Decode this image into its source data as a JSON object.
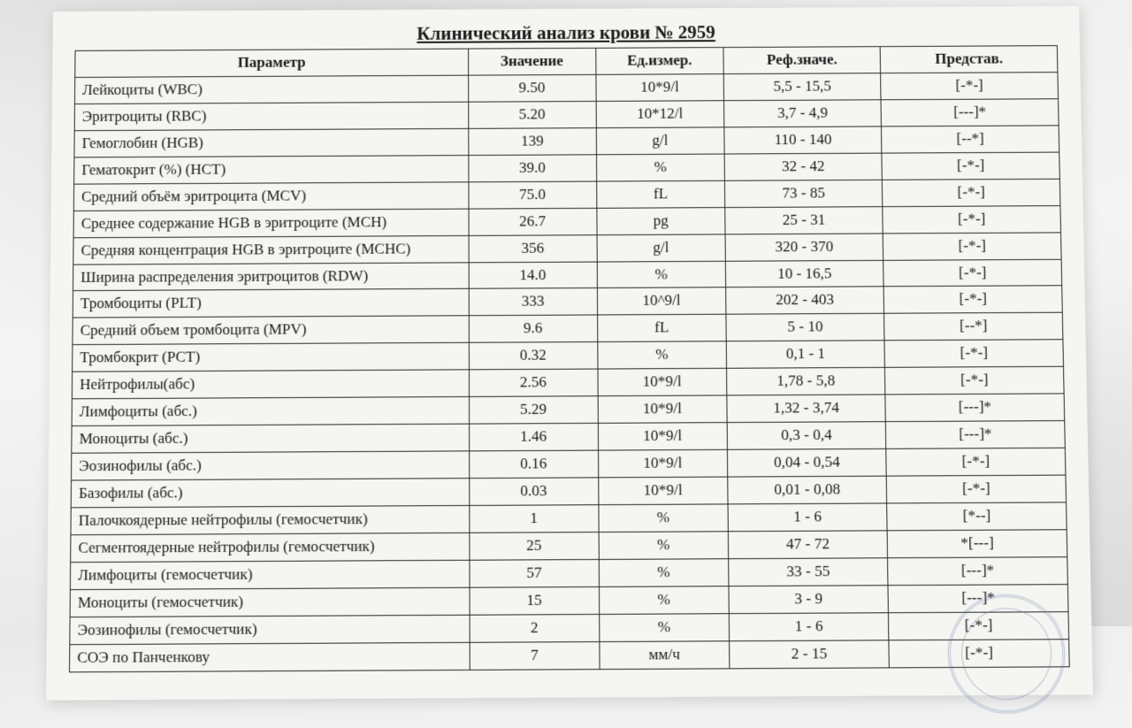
{
  "title": "Клинический анализ крови № 2959",
  "columns": {
    "param": "Параметр",
    "value": "Значение",
    "unit": "Ед.измер.",
    "ref": "Реф.значе.",
    "repr": "Представ."
  },
  "rows": [
    {
      "param": "Лейкоциты (WBC)",
      "value": "9.50",
      "unit": "10*9/l",
      "ref": "5,5 - 15,5",
      "repr": "[-*-]"
    },
    {
      "param": "Эритроциты (RBC)",
      "value": "5.20",
      "unit": "10*12/l",
      "ref": "3,7 - 4,9",
      "repr": "[---]*"
    },
    {
      "param": "Гемоглобин (HGB)",
      "value": "139",
      "unit": "g/l",
      "ref": "110 - 140",
      "repr": "[--*]"
    },
    {
      "param": "Гематокрит (%) (HCT)",
      "value": "39.0",
      "unit": "%",
      "ref": "32 - 42",
      "repr": "[-*-]"
    },
    {
      "param": "Средний объём эритроцита (MCV)",
      "value": "75.0",
      "unit": "fL",
      "ref": "73 - 85",
      "repr": "[-*-]"
    },
    {
      "param": "Среднее содержание HGB в эритроците (MCH)",
      "value": "26.7",
      "unit": "pg",
      "ref": "25 - 31",
      "repr": "[-*-]"
    },
    {
      "param": "Средняя концентрация HGB в эритроците (MCHC)",
      "value": "356",
      "unit": "g/l",
      "ref": "320 - 370",
      "repr": "[-*-]"
    },
    {
      "param": "Ширина распределения эритроцитов (RDW)",
      "value": "14.0",
      "unit": "%",
      "ref": "10 - 16,5",
      "repr": "[-*-]"
    },
    {
      "param": "Тромбоциты (PLT)",
      "value": "333",
      "unit": "10^9/l",
      "ref": "202 - 403",
      "repr": "[-*-]"
    },
    {
      "param": "Средний объем тромбоцита (MPV)",
      "value": "9.6",
      "unit": "fL",
      "ref": "5 - 10",
      "repr": "[--*]"
    },
    {
      "param": "Тромбокрит (PCT)",
      "value": "0.32",
      "unit": "%",
      "ref": "0,1 - 1",
      "repr": "[-*-]"
    },
    {
      "param": "Нейтрофилы(абс)",
      "value": "2.56",
      "unit": "10*9/l",
      "ref": "1,78 - 5,8",
      "repr": "[-*-]"
    },
    {
      "param": "Лимфоциты (абс.)",
      "value": "5.29",
      "unit": "10*9/l",
      "ref": "1,32 - 3,74",
      "repr": "[---]*"
    },
    {
      "param": "Моноциты (абс.)",
      "value": "1.46",
      "unit": "10*9/l",
      "ref": "0,3 - 0,4",
      "repr": "[---]*"
    },
    {
      "param": "Эозинофилы (абс.)",
      "value": "0.16",
      "unit": "10*9/l",
      "ref": "0,04 - 0,54",
      "repr": "[-*-]"
    },
    {
      "param": "Базофилы (абс.)",
      "value": "0.03",
      "unit": "10*9/l",
      "ref": "0,01 - 0,08",
      "repr": "[-*-]"
    },
    {
      "param": "Палочкоядерные нейтрофилы (гемосчетчик)",
      "value": "1",
      "unit": "%",
      "ref": "1 - 6",
      "repr": "[*--]"
    },
    {
      "param": "Сегментоядерные нейтрофилы (гемосчетчик)",
      "value": "25",
      "unit": "%",
      "ref": "47 - 72",
      "repr": "*[---]"
    },
    {
      "param": "Лимфоциты (гемосчетчик)",
      "value": "57",
      "unit": "%",
      "ref": "33 - 55",
      "repr": "[---]*"
    },
    {
      "param": "Моноциты (гемосчетчик)",
      "value": "15",
      "unit": "%",
      "ref": "3 - 9",
      "repr": "[---]*"
    },
    {
      "param": "Эозинофилы (гемосчетчик)",
      "value": "2",
      "unit": "%",
      "ref": "1 - 6",
      "repr": "[-*-]"
    },
    {
      "param": "СОЭ по Панченкову",
      "value": "7",
      "unit": "мм/ч",
      "ref": "2 - 15",
      "repr": "[-*-]"
    }
  ],
  "style": {
    "font_family": "Times New Roman",
    "title_fontsize": 21,
    "body_fontsize": 17,
    "border_color": "#2a2a2a",
    "text_color": "#1a1a1a",
    "paper_color": "#f5f5f2",
    "col_widths_pct": {
      "param": 40,
      "value": 13,
      "unit": 13,
      "ref": 16,
      "repr": 18
    }
  }
}
